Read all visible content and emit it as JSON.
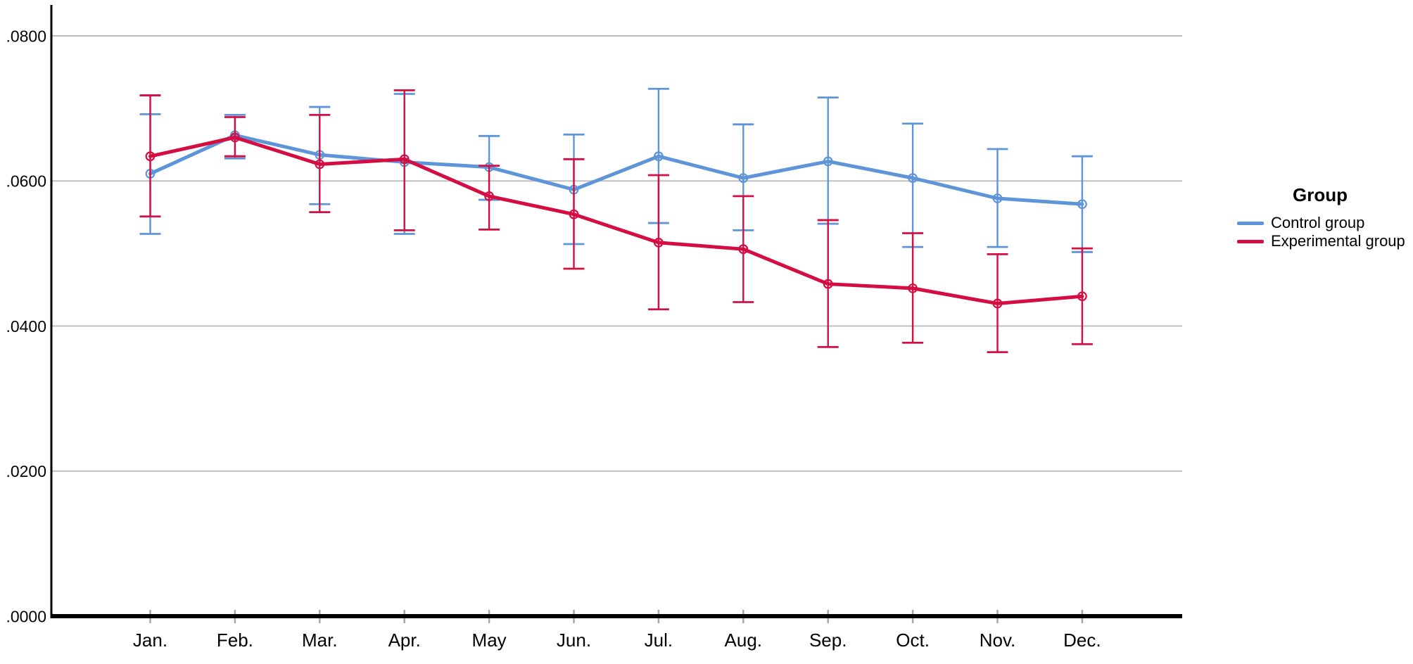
{
  "chart_data": {
    "type": "line",
    "title": "",
    "categories": [
      "Jan.",
      "Feb.",
      "Mar.",
      "Apr.",
      "May",
      "Jun.",
      "Jul.",
      "Aug.",
      "Sep.",
      "Oct.",
      "Nov.",
      "Dec."
    ],
    "y_tick_labels": [
      ".0000",
      ".0200",
      ".0400",
      ".0600",
      ".0800"
    ],
    "ylim": [
      0,
      0.08
    ],
    "grid": "horizontal",
    "legend": {
      "title": "Group",
      "position": "right"
    },
    "colors": {
      "axis": "#000000",
      "gridline": "#BFBFBF",
      "tick": "#A6A6A6",
      "background": "#FFFFFF"
    },
    "series": [
      {
        "name": "Control group",
        "color": "#5E94D8",
        "means": [
          0.061,
          0.0663,
          0.0636,
          0.0626,
          0.0619,
          0.0588,
          0.0634,
          0.0604,
          0.0627,
          0.0604,
          0.0576,
          0.0568
        ],
        "upper": [
          0.0692,
          0.0691,
          0.0702,
          0.072,
          0.0662,
          0.0664,
          0.0727,
          0.0678,
          0.0715,
          0.0679,
          0.0644,
          0.0634
        ],
        "lower": [
          0.0527,
          0.0631,
          0.0568,
          0.0527,
          0.0574,
          0.0513,
          0.0542,
          0.0532,
          0.0541,
          0.0509,
          0.0509,
          0.0502
        ]
      },
      {
        "name": "Experimental group",
        "color": "#D40E42",
        "means": [
          0.0634,
          0.066,
          0.0623,
          0.063,
          0.0579,
          0.0554,
          0.0515,
          0.0506,
          0.0458,
          0.0452,
          0.0431,
          0.0441
        ],
        "upper": [
          0.0718,
          0.0688,
          0.0691,
          0.0725,
          0.0621,
          0.063,
          0.0608,
          0.0579,
          0.0546,
          0.0528,
          0.0499,
          0.0507
        ],
        "lower": [
          0.0551,
          0.0634,
          0.0557,
          0.0532,
          0.0533,
          0.0479,
          0.0423,
          0.0433,
          0.0371,
          0.0377,
          0.0364,
          0.0375
        ]
      }
    ]
  }
}
